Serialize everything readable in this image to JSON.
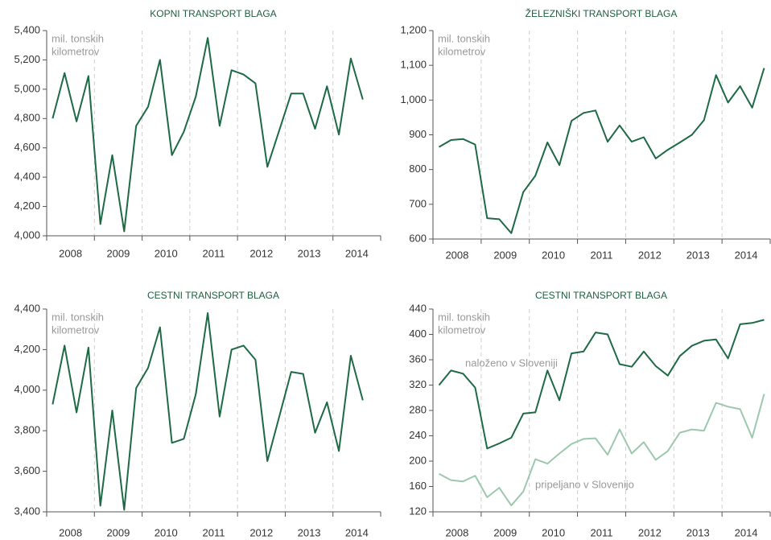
{
  "chart_data": [
    {
      "type": "line",
      "title": "KOPNI TRANSPORT BLAGA",
      "ylabel": [
        "mil. tonskih",
        "kilometrov"
      ],
      "years": [
        "2008",
        "2009",
        "2010",
        "2011",
        "2012",
        "2013",
        "2014"
      ],
      "series": [
        {
          "color": "#1d6a45",
          "values": [
            4800,
            5110,
            4780,
            5090,
            4080,
            4550,
            4030,
            4750,
            4880,
            5200,
            4550,
            4710,
            4950,
            5350,
            4750,
            5130,
            5100,
            5040,
            4470,
            4720,
            4970,
            4970,
            4730,
            5020,
            4690,
            5210,
            4930
          ]
        }
      ],
      "ylim": [
        4000,
        5400
      ],
      "yticks": [
        {
          "value": 4000,
          "label": "4,000"
        },
        {
          "value": 4200,
          "label": "4,200"
        },
        {
          "value": 4400,
          "label": "4,400"
        },
        {
          "value": 4600,
          "label": "4,600"
        },
        {
          "value": 4800,
          "label": "4,800"
        },
        {
          "value": 5000,
          "label": "5,000"
        },
        {
          "value": 5200,
          "label": "5,200"
        },
        {
          "value": 5400,
          "label": "5,400"
        }
      ]
    },
    {
      "type": "line",
      "title": "ŽELEZNIŠKI TRANSPORT BLAGA",
      "ylabel": [
        "mil. tonskih",
        "kilometrov"
      ],
      "years": [
        "2008",
        "2009",
        "2010",
        "2011",
        "2012",
        "2013",
        "2014"
      ],
      "series": [
        {
          "color": "#1d6a45",
          "values": [
            865,
            885,
            888,
            872,
            660,
            657,
            617,
            735,
            782,
            878,
            813,
            940,
            963,
            970,
            880,
            927,
            880,
            893,
            832,
            857,
            878,
            900,
            942,
            1072,
            993,
            1040,
            978,
            1092
          ]
        }
      ],
      "ylim": [
        600,
        1200
      ],
      "yticks": [
        600,
        700,
        800,
        900,
        {
          "value": 1000,
          "label": "1,000"
        },
        {
          "value": 1100,
          "label": "1,100"
        },
        {
          "value": 1200,
          "label": "1,200"
        }
      ]
    },
    {
      "type": "line",
      "title": "CESTNI TRANSPORT BLAGA",
      "ylabel": [
        "mil. tonskih",
        "kilometrov"
      ],
      "years": [
        "2008",
        "2009",
        "2010",
        "2011",
        "2012",
        "2013",
        "2014"
      ],
      "series": [
        {
          "color": "#1d6a45",
          "values": [
            3930,
            4220,
            3890,
            4210,
            3430,
            3900,
            3410,
            4010,
            4110,
            4310,
            3740,
            3760,
            3980,
            4380,
            3870,
            4200,
            4220,
            4150,
            3650,
            3870,
            4090,
            4080,
            3790,
            3940,
            3700,
            4170,
            3950
          ]
        }
      ],
      "ylim": [
        3400,
        4400
      ],
      "yticks": [
        {
          "value": 3400,
          "label": "3,400"
        },
        {
          "value": 3600,
          "label": "3,600"
        },
        {
          "value": 3800,
          "label": "3,800"
        },
        {
          "value": 4000,
          "label": "4,000"
        },
        {
          "value": 4200,
          "label": "4,200"
        },
        {
          "value": 4400,
          "label": "4,400"
        }
      ]
    },
    {
      "type": "line",
      "title": "CESTNI TRANSPORT BLAGA",
      "ylabel": [
        "mil. tonskih",
        "kilometrov"
      ],
      "years": [
        "2008",
        "2009",
        "2010",
        "2011",
        "2012",
        "2013",
        "2014"
      ],
      "series": [
        {
          "name": "naloženo v Sloveniji",
          "color": "#1d6a45",
          "values": [
            320,
            343,
            338,
            316,
            220,
            228,
            237,
            275,
            277,
            343,
            296,
            370,
            373,
            403,
            400,
            353,
            349,
            373,
            350,
            335,
            366,
            382,
            390,
            392,
            362,
            416,
            418,
            423
          ]
        },
        {
          "name": "pripeljano v Slovenijo",
          "color": "#9cc8ae",
          "values": [
            180,
            170,
            168,
            177,
            143,
            158,
            130,
            152,
            203,
            196,
            212,
            227,
            235,
            236,
            210,
            250,
            212,
            230,
            202,
            216,
            245,
            250,
            248,
            292,
            286,
            282,
            237,
            306
          ]
        }
      ],
      "ylim": [
        120,
        440
      ],
      "yticks": [
        120,
        160,
        200,
        240,
        280,
        320,
        360,
        400,
        440
      ]
    }
  ]
}
